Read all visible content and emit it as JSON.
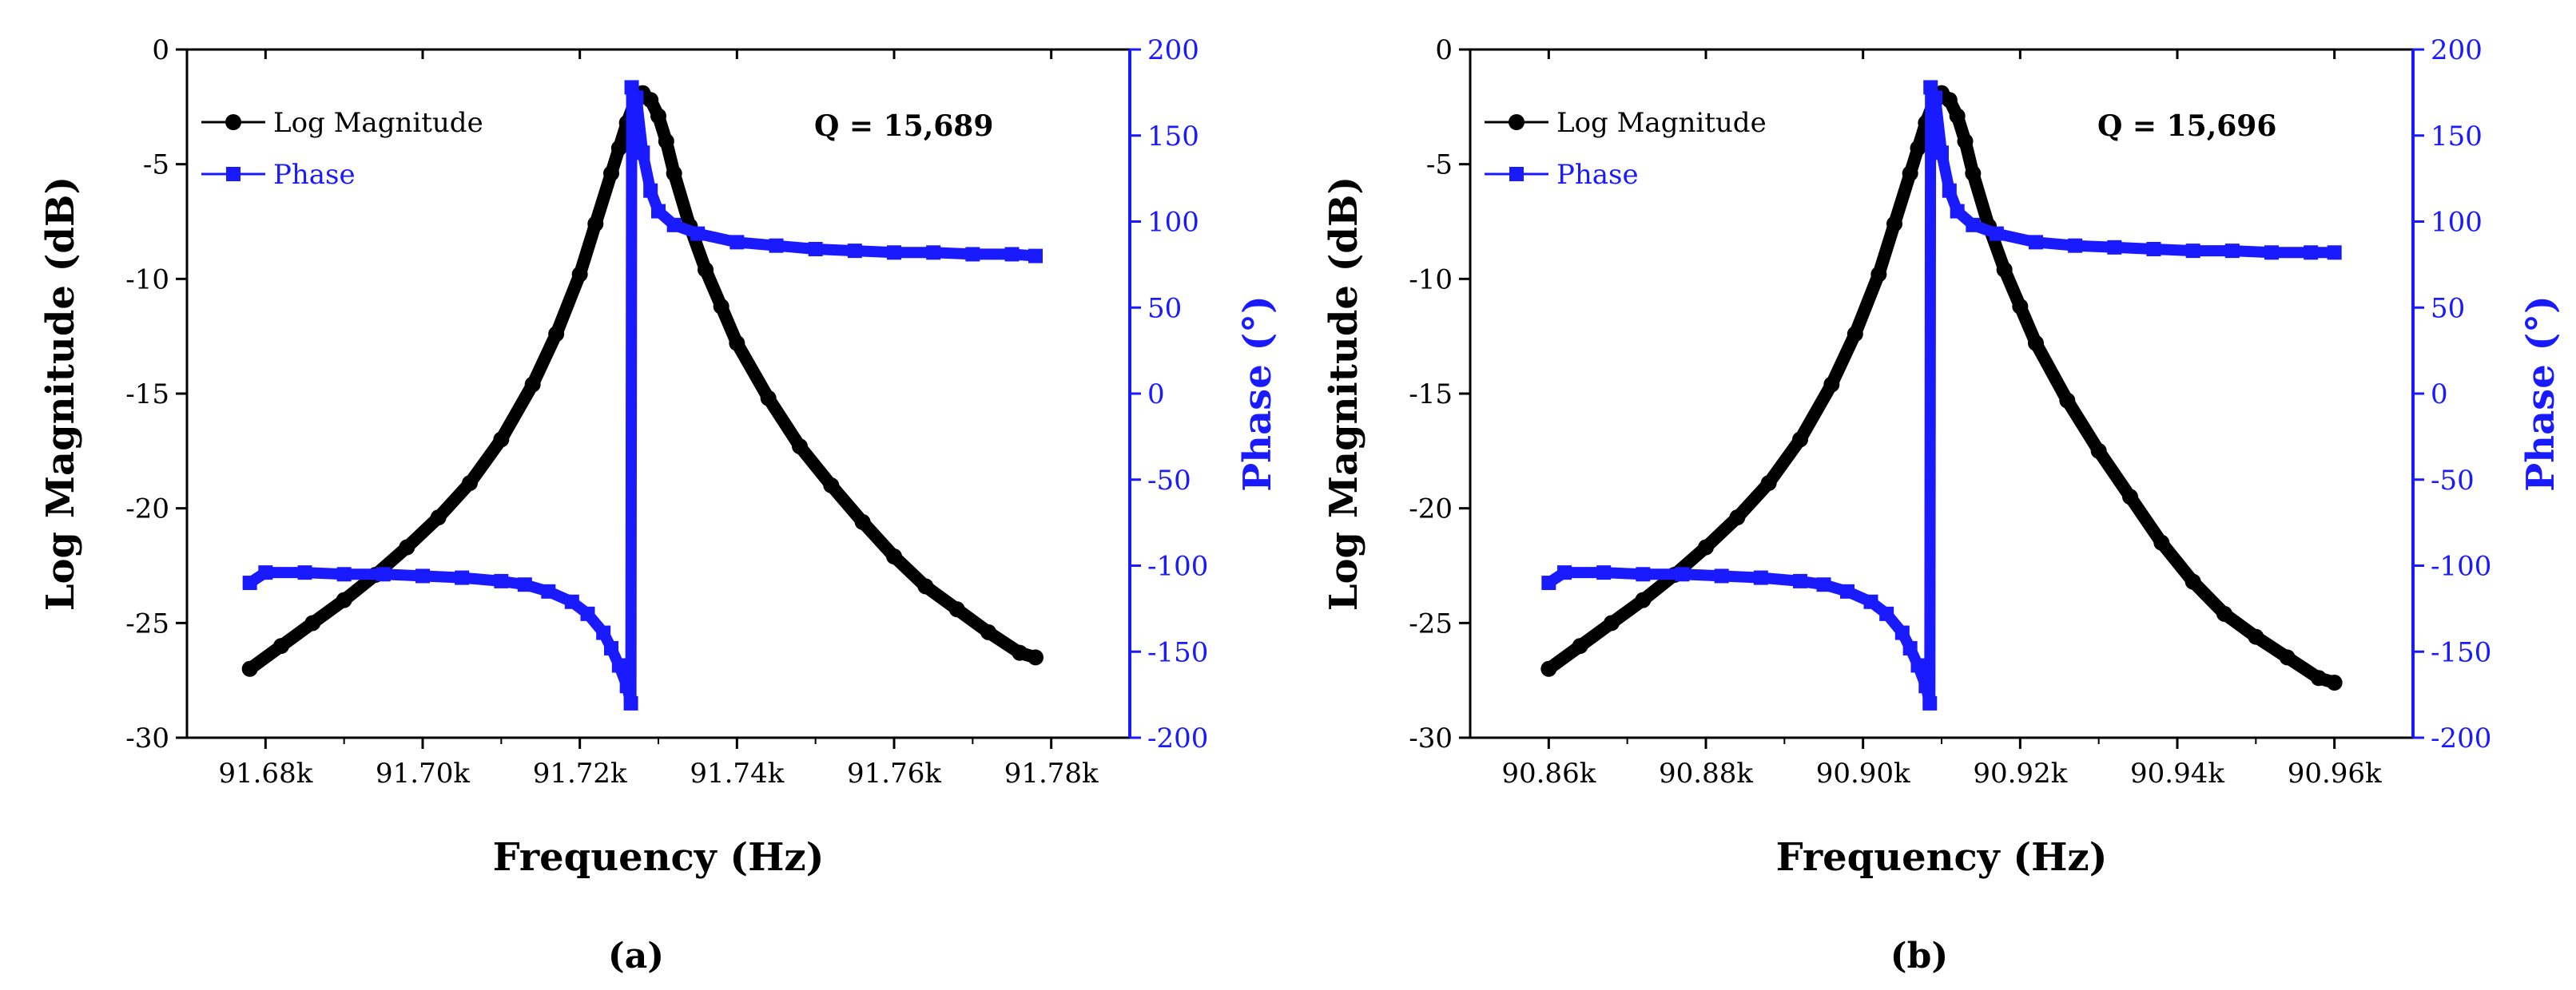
{
  "chart_data": [
    {
      "type": "line",
      "panel_label": "(a)",
      "xlabel": "Frequency (Hz)",
      "ylabel": "Log Magnitude (dB)",
      "y2label": "Phase (°)",
      "xlim": [
        91.67,
        91.79
      ],
      "ylim": [
        -30,
        0
      ],
      "y2lim": [
        -200,
        200
      ],
      "x_ticks": [
        {
          "value": 91.68,
          "label": "91.68k"
        },
        {
          "value": 91.7,
          "label": "91.70k"
        },
        {
          "value": 91.72,
          "label": "91.72k"
        },
        {
          "value": 91.74,
          "label": "91.74k"
        },
        {
          "value": 91.76,
          "label": "91.76k"
        },
        {
          "value": 91.78,
          "label": "91.78k"
        }
      ],
      "y_ticks": [
        {
          "value": 0,
          "label": "0"
        },
        {
          "value": -5,
          "label": "-5"
        },
        {
          "value": -10,
          "label": "-10"
        },
        {
          "value": -15,
          "label": "-15"
        },
        {
          "value": -20,
          "label": "-20"
        },
        {
          "value": -25,
          "label": "-25"
        },
        {
          "value": -30,
          "label": "-30"
        }
      ],
      "y2_ticks": [
        {
          "value": 200,
          "label": "200"
        },
        {
          "value": 150,
          "label": "150"
        },
        {
          "value": 100,
          "label": "100"
        },
        {
          "value": 50,
          "label": "50"
        },
        {
          "value": 0,
          "label": "0"
        },
        {
          "value": -50,
          "label": "-50"
        },
        {
          "value": -100,
          "label": "-100"
        },
        {
          "value": -150,
          "label": "-150"
        },
        {
          "value": -200,
          "label": "-200"
        }
      ],
      "annotation": "Q = 15,689",
      "legend": [
        "Log Magnitude",
        "Phase"
      ],
      "legend_position": "top-left",
      "series": [
        {
          "name": "Log Magnitude",
          "axis": "left",
          "color": "#000000",
          "marker": "circle",
          "x": [
            91.678,
            91.682,
            91.686,
            91.69,
            91.694,
            91.698,
            91.702,
            91.706,
            91.71,
            91.714,
            91.717,
            91.72,
            91.722,
            91.724,
            91.725,
            91.726,
            91.727,
            91.728,
            91.729,
            91.73,
            91.731,
            91.732,
            91.734,
            91.736,
            91.738,
            91.74,
            91.744,
            91.748,
            91.752,
            91.756,
            91.76,
            91.764,
            91.768,
            91.772,
            91.776,
            91.778
          ],
          "values": [
            -27.0,
            -26.0,
            -25.0,
            -24.0,
            -22.9,
            -21.7,
            -20.4,
            -18.9,
            -17.0,
            -14.6,
            -12.4,
            -9.8,
            -7.6,
            -5.4,
            -4.3,
            -3.2,
            -2.3,
            -1.9,
            -2.2,
            -2.9,
            -4.0,
            -5.4,
            -7.7,
            -9.6,
            -11.2,
            -12.8,
            -15.2,
            -17.3,
            -19.0,
            -20.6,
            -22.1,
            -23.4,
            -24.4,
            -25.4,
            -26.3,
            -26.5
          ]
        },
        {
          "name": "Phase",
          "axis": "right",
          "color": "#1a1aff",
          "marker": "square",
          "x": [
            91.678,
            91.68,
            91.685,
            91.69,
            91.695,
            91.7,
            91.705,
            91.71,
            91.713,
            91.716,
            91.719,
            91.721,
            91.723,
            91.724,
            91.725,
            91.726,
            91.7265,
            91.7266,
            91.7272,
            91.728,
            91.729,
            91.73,
            91.732,
            91.735,
            91.74,
            91.745,
            91.75,
            91.755,
            91.76,
            91.765,
            91.77,
            91.775,
            91.778
          ],
          "values": [
            -110,
            -104,
            -104,
            -105,
            -105,
            -106,
            -107,
            -109,
            -111,
            -115,
            -121,
            -128,
            -139,
            -148,
            -158,
            -170,
            -180,
            178,
            172,
            140,
            118,
            106,
            98,
            93,
            88,
            86,
            84,
            83,
            82,
            82,
            81,
            81,
            80
          ]
        }
      ]
    },
    {
      "type": "line",
      "panel_label": "(b)",
      "xlabel": "Frequency (Hz)",
      "ylabel": "Log Magnitude (dB)",
      "y2label": "Phase (°)",
      "xlim": [
        90.85,
        90.97
      ],
      "ylim": [
        -30,
        0
      ],
      "y2lim": [
        -200,
        200
      ],
      "x_ticks": [
        {
          "value": 90.86,
          "label": "90.86k"
        },
        {
          "value": 90.88,
          "label": "90.88k"
        },
        {
          "value": 90.9,
          "label": "90.90k"
        },
        {
          "value": 90.92,
          "label": "90.92k"
        },
        {
          "value": 90.94,
          "label": "90.94k"
        },
        {
          "value": 90.96,
          "label": "90.96k"
        }
      ],
      "y_ticks": [
        {
          "value": 0,
          "label": "0"
        },
        {
          "value": -5,
          "label": "-5"
        },
        {
          "value": -10,
          "label": "-10"
        },
        {
          "value": -15,
          "label": "-15"
        },
        {
          "value": -20,
          "label": "-20"
        },
        {
          "value": -25,
          "label": "-25"
        },
        {
          "value": -30,
          "label": "-30"
        }
      ],
      "y2_ticks": [
        {
          "value": 200,
          "label": "200"
        },
        {
          "value": 150,
          "label": "150"
        },
        {
          "value": 100,
          "label": "100"
        },
        {
          "value": 50,
          "label": "50"
        },
        {
          "value": 0,
          "label": "0"
        },
        {
          "value": -50,
          "label": "-50"
        },
        {
          "value": -100,
          "label": "-100"
        },
        {
          "value": -150,
          "label": "-150"
        },
        {
          "value": -200,
          "label": "-200"
        }
      ],
      "annotation": "Q = 15,696",
      "legend": [
        "Log Magnitude",
        "Phase"
      ],
      "legend_position": "top-left",
      "series": [
        {
          "name": "Log Magnitude",
          "axis": "left",
          "color": "#000000",
          "marker": "circle",
          "x": [
            90.86,
            90.864,
            90.868,
            90.872,
            90.876,
            90.88,
            90.884,
            90.888,
            90.892,
            90.896,
            90.899,
            90.902,
            90.904,
            90.906,
            90.907,
            90.908,
            90.909,
            90.91,
            90.911,
            90.912,
            90.913,
            90.914,
            90.916,
            90.918,
            90.92,
            90.922,
            90.926,
            90.93,
            90.934,
            90.938,
            90.942,
            90.946,
            90.95,
            90.954,
            90.958,
            90.96
          ],
          "values": [
            -27.0,
            -26.0,
            -25.0,
            -24.0,
            -22.9,
            -21.7,
            -20.4,
            -18.9,
            -17.0,
            -14.6,
            -12.4,
            -9.8,
            -7.6,
            -5.4,
            -4.3,
            -3.2,
            -2.3,
            -1.9,
            -2.2,
            -2.9,
            -4.0,
            -5.4,
            -7.7,
            -9.6,
            -11.2,
            -12.8,
            -15.3,
            -17.5,
            -19.5,
            -21.5,
            -23.2,
            -24.6,
            -25.6,
            -26.5,
            -27.4,
            -27.6
          ]
        },
        {
          "name": "Phase",
          "axis": "right",
          "color": "#1a1aff",
          "marker": "square",
          "x": [
            90.86,
            90.862,
            90.867,
            90.872,
            90.877,
            90.882,
            90.887,
            90.892,
            90.895,
            90.898,
            90.901,
            90.903,
            90.905,
            90.906,
            90.907,
            90.908,
            90.9085,
            90.9086,
            90.9092,
            90.91,
            90.911,
            90.912,
            90.914,
            90.917,
            90.922,
            90.927,
            90.932,
            90.937,
            90.942,
            90.947,
            90.952,
            90.957,
            90.96
          ],
          "values": [
            -110,
            -104,
            -104,
            -105,
            -105,
            -106,
            -107,
            -109,
            -111,
            -115,
            -121,
            -128,
            -139,
            -148,
            -158,
            -170,
            -180,
            178,
            172,
            140,
            118,
            106,
            98,
            93,
            88,
            86,
            85,
            84,
            83,
            83,
            82,
            82,
            82
          ]
        }
      ]
    }
  ]
}
